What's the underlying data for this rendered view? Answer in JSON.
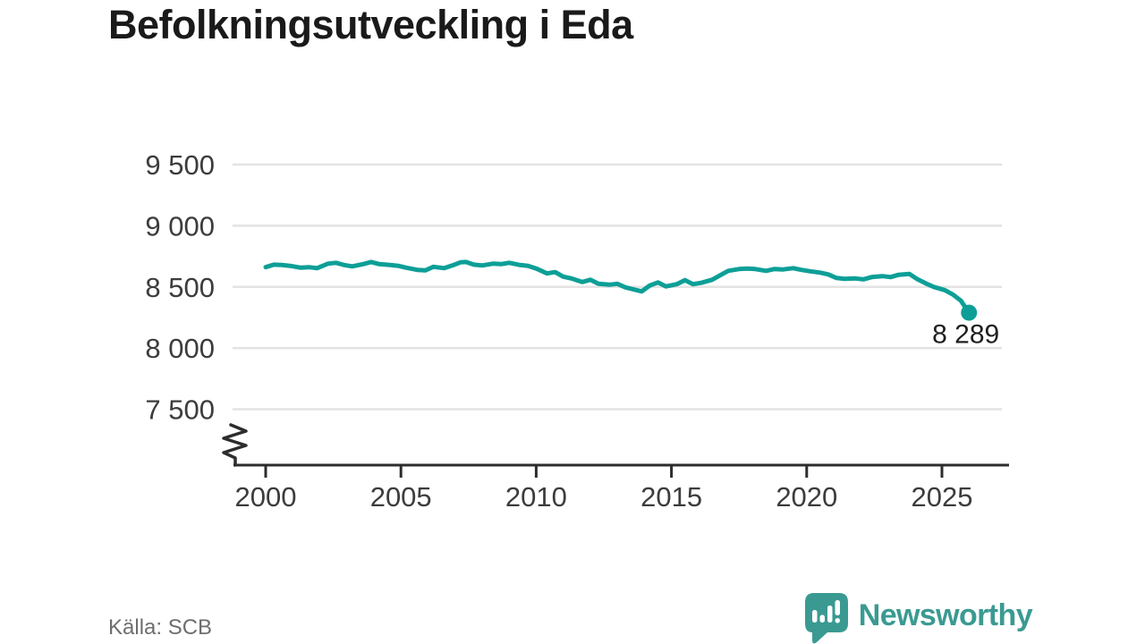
{
  "title": "Befolkningsutveckling i Eda",
  "source": "Källa: SCB",
  "logo": {
    "wordmark": "Newsworthy",
    "icon": "newsworthy-speech-bubble-bar-chart-icon"
  },
  "colors": {
    "line": "#0d9f97",
    "logo_teal": "#3a9a92",
    "grid": "#e3e3e3",
    "axis": "#2d2d2d",
    "tick_text": "#3c3c3c",
    "title_text": "#1a1a1a",
    "annotation_text": "#1f1f1f",
    "source_text": "#6e6e6e",
    "background": "#ffffff"
  },
  "chart_data": {
    "type": "line",
    "title": "Befolkningsutveckling i Eda",
    "xlabel": "",
    "ylabel": "",
    "grid": "horizontal-only",
    "legend": "none",
    "x_range": [
      1999,
      2027.5
    ],
    "y_range": [
      7300,
      9600
    ],
    "y_axis_break": true,
    "x_ticks": [
      {
        "label": "2000",
        "value": 2000
      },
      {
        "label": "2005",
        "value": 2005
      },
      {
        "label": "2010",
        "value": 2010
      },
      {
        "label": "2015",
        "value": 2015
      },
      {
        "label": "2020",
        "value": 2020
      },
      {
        "label": "2025",
        "value": 2025
      }
    ],
    "y_ticks": [
      {
        "label": "9 500",
        "value": 9500
      },
      {
        "label": "9 000",
        "value": 9000
      },
      {
        "label": "8 500",
        "value": 8500
      },
      {
        "label": "8 000",
        "value": 8000
      },
      {
        "label": "7 500",
        "value": 7500
      }
    ],
    "series": [
      {
        "name": "Befolkning i Eda",
        "points": [
          [
            2000.0,
            8661
          ],
          [
            2000.3,
            8682
          ],
          [
            2000.6,
            8679
          ],
          [
            2000.9,
            8672
          ],
          [
            2001.3,
            8657
          ],
          [
            2001.6,
            8661
          ],
          [
            2001.9,
            8653
          ],
          [
            2002.3,
            8690
          ],
          [
            2002.6,
            8697
          ],
          [
            2002.9,
            8679
          ],
          [
            2003.2,
            8668
          ],
          [
            2003.6,
            8686
          ],
          [
            2003.9,
            8704
          ],
          [
            2004.2,
            8686
          ],
          [
            2004.6,
            8679
          ],
          [
            2004.9,
            8672
          ],
          [
            2005.2,
            8657
          ],
          [
            2005.6,
            8639
          ],
          [
            2005.9,
            8635
          ],
          [
            2006.2,
            8664
          ],
          [
            2006.6,
            8653
          ],
          [
            2006.9,
            8675
          ],
          [
            2007.2,
            8701
          ],
          [
            2007.4,
            8704
          ],
          [
            2007.7,
            8682
          ],
          [
            2008.0,
            8675
          ],
          [
            2008.4,
            8690
          ],
          [
            2008.7,
            8686
          ],
          [
            2009.0,
            8697
          ],
          [
            2009.4,
            8679
          ],
          [
            2009.7,
            8672
          ],
          [
            2010.0,
            8650
          ],
          [
            2010.4,
            8610
          ],
          [
            2010.7,
            8621
          ],
          [
            2011.0,
            8584
          ],
          [
            2011.3,
            8569
          ],
          [
            2011.7,
            8540
          ],
          [
            2012.0,
            8558
          ],
          [
            2012.3,
            8525
          ],
          [
            2012.7,
            8518
          ],
          [
            2013.0,
            8525
          ],
          [
            2013.3,
            8496
          ],
          [
            2013.7,
            8474
          ],
          [
            2013.9,
            8463
          ],
          [
            2014.2,
            8511
          ],
          [
            2014.5,
            8536
          ],
          [
            2014.8,
            8504
          ],
          [
            2015.2,
            8522
          ],
          [
            2015.5,
            8555
          ],
          [
            2015.8,
            8522
          ],
          [
            2016.1,
            8533
          ],
          [
            2016.5,
            8558
          ],
          [
            2016.8,
            8595
          ],
          [
            2017.1,
            8631
          ],
          [
            2017.5,
            8646
          ],
          [
            2017.8,
            8650
          ],
          [
            2018.1,
            8646
          ],
          [
            2018.5,
            8631
          ],
          [
            2018.8,
            8646
          ],
          [
            2019.1,
            8642
          ],
          [
            2019.5,
            8653
          ],
          [
            2019.8,
            8639
          ],
          [
            2020.1,
            8628
          ],
          [
            2020.5,
            8617
          ],
          [
            2020.8,
            8602
          ],
          [
            2021.1,
            8573
          ],
          [
            2021.4,
            8566
          ],
          [
            2021.8,
            8569
          ],
          [
            2022.1,
            8562
          ],
          [
            2022.4,
            8580
          ],
          [
            2022.8,
            8588
          ],
          [
            2023.1,
            8580
          ],
          [
            2023.4,
            8599
          ],
          [
            2023.8,
            8606
          ],
          [
            2024.1,
            8562
          ],
          [
            2024.4,
            8529
          ],
          [
            2024.7,
            8500
          ],
          [
            2025.1,
            8474
          ],
          [
            2025.4,
            8438
          ],
          [
            2025.7,
            8387
          ],
          [
            2026.0,
            8289
          ]
        ]
      }
    ],
    "end_annotation": {
      "label": "8 289",
      "x": 2026.0,
      "y": 8289
    }
  }
}
